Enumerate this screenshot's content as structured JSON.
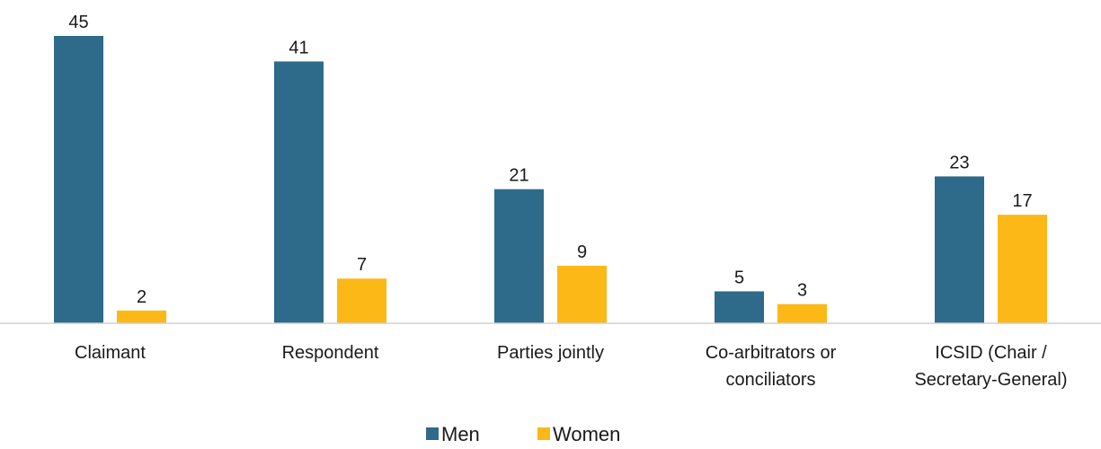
{
  "chart_data": {
    "type": "bar",
    "categories": [
      [
        "Claimant"
      ],
      [
        "Respondent"
      ],
      [
        "Parties jointly"
      ],
      [
        "Co-arbitrators or",
        "conciliators"
      ],
      [
        "ICSID (Chair /",
        "Secretary-General)"
      ]
    ],
    "series": [
      {
        "name": "Men",
        "color": "#2e6a8a",
        "values": [
          45,
          41,
          21,
          5,
          23
        ]
      },
      {
        "name": "Women",
        "color": "#fbb817",
        "values": [
          2,
          7,
          9,
          3,
          17
        ]
      }
    ],
    "ylim": [
      0,
      45
    ],
    "grid": false,
    "legend_position": "bottom-center",
    "show_data_labels": true
  }
}
